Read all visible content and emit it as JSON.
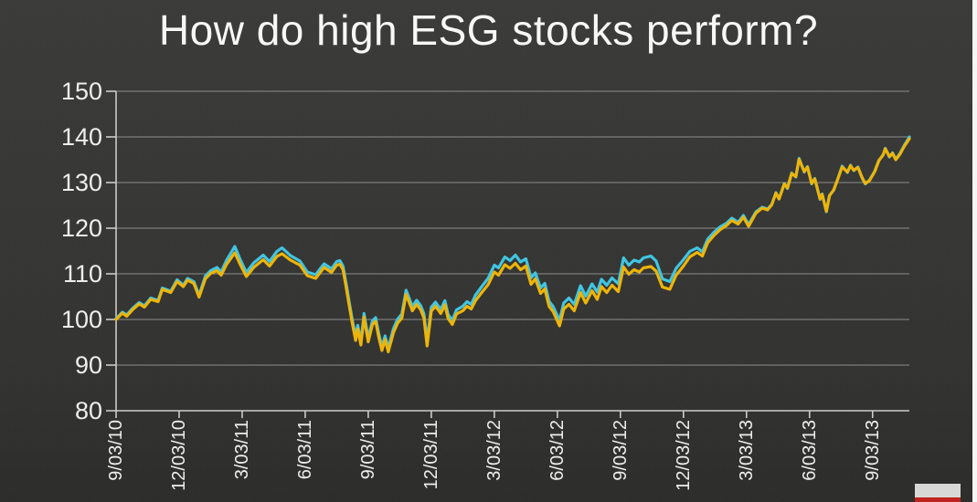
{
  "title": "How do high ESG stocks perform?",
  "colors": {
    "background_top": "#3a3a38",
    "background_bottom": "#2b2b29",
    "grid": "#8e8e8c",
    "axis": "#cfcfcd",
    "text": "#f3f3f1",
    "series_cyan": "#3fc8e6",
    "series_yellow": "#f2b705",
    "watermark_body": "#d8d8d6",
    "watermark_stripe": "#c0231d",
    "edge_strip": "#f4f6f6"
  },
  "watermark": {
    "present": true
  },
  "chart_data": {
    "type": "line",
    "title": "How do high ESG stocks perform?",
    "xlabel": "",
    "ylabel": "",
    "grid": true,
    "legend": "none",
    "x_unit": "months after 9/03/10",
    "xlim": [
      0,
      37.75
    ],
    "ylim": [
      80,
      150
    ],
    "y_ticks": [
      150,
      140,
      130,
      120,
      110,
      100,
      90,
      80
    ],
    "x_tick_positions": [
      0,
      3,
      6,
      9,
      12,
      15,
      18,
      21,
      24,
      27,
      30,
      33,
      36
    ],
    "x_tick_labels": [
      "9/03/10",
      "12/03/10",
      "3/03/11",
      "6/03/11",
      "9/03/11",
      "12/03/11",
      "3/03/12",
      "6/03/12",
      "9/03/12",
      "12/03/12",
      "3/03/13",
      "6/03/13",
      "9/03/13"
    ],
    "x": [
      0.0,
      0.3,
      0.5,
      0.8,
      1.1,
      1.35,
      1.65,
      2.0,
      2.2,
      2.6,
      2.9,
      3.2,
      3.4,
      3.7,
      3.95,
      4.25,
      4.5,
      4.8,
      5.0,
      5.25,
      5.65,
      5.9,
      6.2,
      6.55,
      7.0,
      7.3,
      7.65,
      7.9,
      8.3,
      8.75,
      9.1,
      9.5,
      9.9,
      10.25,
      10.5,
      10.65,
      10.8,
      10.95,
      11.1,
      11.25,
      11.4,
      11.5,
      11.65,
      11.8,
      12.0,
      12.2,
      12.35,
      12.5,
      12.65,
      12.8,
      12.95,
      13.2,
      13.4,
      13.6,
      13.8,
      13.95,
      14.1,
      14.3,
      14.5,
      14.65,
      14.8,
      15.0,
      15.2,
      15.45,
      15.65,
      15.8,
      16.0,
      16.2,
      16.5,
      16.7,
      16.9,
      17.1,
      17.4,
      17.7,
      18.0,
      18.2,
      18.5,
      18.75,
      19.0,
      19.25,
      19.5,
      19.75,
      19.95,
      20.2,
      20.4,
      20.6,
      20.8,
      21.1,
      21.3,
      21.55,
      21.8,
      22.1,
      22.35,
      22.65,
      22.9,
      23.1,
      23.35,
      23.6,
      23.9,
      24.15,
      24.4,
      24.65,
      24.9,
      25.1,
      25.45,
      25.7,
      26.0,
      26.35,
      26.65,
      27.0,
      27.3,
      27.65,
      27.9,
      28.15,
      28.45,
      28.75,
      29.05,
      29.3,
      29.6,
      29.85,
      30.1,
      30.45,
      30.75,
      31.0,
      31.2,
      31.4,
      31.55,
      31.8,
      31.95,
      32.15,
      32.35,
      32.5,
      32.75,
      32.9,
      33.1,
      33.25,
      33.5,
      33.6,
      33.8,
      33.95,
      34.15,
      34.35,
      34.55,
      34.8,
      34.95,
      35.1,
      35.3,
      35.5,
      35.65,
      35.85,
      36.1,
      36.3,
      36.5,
      36.6,
      36.8,
      36.95,
      37.1,
      37.3,
      37.5,
      37.65,
      37.75
    ],
    "series": [
      {
        "name": "cyan-line",
        "color_key": "series_cyan",
        "values": [
          100.2,
          101.6,
          101.0,
          102.5,
          103.7,
          103.0,
          104.7,
          104.2,
          106.9,
          106.2,
          108.7,
          107.5,
          109.0,
          108.3,
          105.3,
          109.5,
          110.7,
          111.4,
          110.4,
          112.9,
          116.0,
          113.2,
          110.3,
          112.4,
          114.1,
          112.7,
          114.9,
          115.7,
          114.0,
          112.8,
          110.4,
          109.8,
          112.2,
          111.1,
          112.7,
          112.9,
          111.7,
          107.8,
          103.7,
          99.7,
          96.2,
          98.7,
          95.2,
          101.3,
          95.9,
          99.7,
          100.4,
          96.9,
          94.0,
          96.4,
          93.8,
          98.0,
          100.1,
          101.2,
          106.4,
          104.6,
          102.8,
          104.2,
          103.0,
          101.2,
          95.3,
          102.7,
          103.8,
          102.2,
          104.1,
          101.1,
          99.8,
          102.1,
          102.9,
          103.9,
          103.3,
          105.3,
          107.2,
          109.0,
          111.9,
          111.3,
          113.7,
          112.9,
          114.1,
          112.6,
          113.3,
          109.1,
          110.2,
          106.9,
          107.9,
          104.0,
          102.8,
          99.8,
          103.6,
          104.7,
          103.3,
          107.4,
          105.1,
          107.8,
          106.0,
          108.8,
          107.5,
          109.1,
          107.8,
          113.5,
          111.9,
          113.0,
          112.6,
          113.5,
          113.9,
          112.8,
          108.9,
          108.3,
          111.2,
          113.1,
          114.9,
          115.7,
          114.8,
          117.6,
          119.1,
          120.3,
          121.1,
          122.2,
          121.3,
          122.8,
          120.8,
          123.6,
          124.6,
          124.2,
          125.2,
          127.8,
          126.4,
          129.8,
          128.7,
          132.1,
          131.2,
          135.3,
          132.3,
          133.5,
          129.7,
          130.9,
          126.3,
          127.5,
          123.6,
          127.2,
          128.3,
          130.9,
          133.6,
          132.2,
          133.8,
          132.6,
          133.4,
          131.0,
          129.7,
          130.5,
          132.5,
          134.9,
          136.0,
          137.5,
          135.6,
          136.5,
          135.1,
          136.4,
          138.1,
          139.2,
          140.0
        ]
      },
      {
        "name": "yellow-line",
        "color_key": "series_yellow",
        "values": [
          100.0,
          101.4,
          100.7,
          102.2,
          103.4,
          102.7,
          104.4,
          103.9,
          106.6,
          105.9,
          108.3,
          107.2,
          108.6,
          107.9,
          104.9,
          108.9,
          110.1,
          110.7,
          109.7,
          112.0,
          114.6,
          112.1,
          109.4,
          111.4,
          113.1,
          111.7,
          113.8,
          114.4,
          113.0,
          111.9,
          109.6,
          109.0,
          111.4,
          110.3,
          111.9,
          112.1,
          110.9,
          107.0,
          102.9,
          98.9,
          95.4,
          97.9,
          94.4,
          100.5,
          95.1,
          98.9,
          99.6,
          96.1,
          93.2,
          95.6,
          92.9,
          97.1,
          99.2,
          100.3,
          105.5,
          103.7,
          101.9,
          103.3,
          102.1,
          100.3,
          94.2,
          101.8,
          102.9,
          101.3,
          103.2,
          100.2,
          98.9,
          101.2,
          101.9,
          102.9,
          102.3,
          104.1,
          105.9,
          107.6,
          110.4,
          109.7,
          112.0,
          111.2,
          112.3,
          110.9,
          111.7,
          107.7,
          108.9,
          105.7,
          106.7,
          102.9,
          101.7,
          98.6,
          102.3,
          103.3,
          101.9,
          105.9,
          103.6,
          106.3,
          104.4,
          107.2,
          105.9,
          107.5,
          106.1,
          111.5,
          109.9,
          110.9,
          110.4,
          111.3,
          111.6,
          110.6,
          107.1,
          106.6,
          109.7,
          111.7,
          113.7,
          114.7,
          113.9,
          116.8,
          118.4,
          119.7,
          120.6,
          121.7,
          120.9,
          122.4,
          120.4,
          123.3,
          124.4,
          124.0,
          125.1,
          127.7,
          126.4,
          129.7,
          128.8,
          132.0,
          131.3,
          135.1,
          132.4,
          133.4,
          129.8,
          130.8,
          126.4,
          127.4,
          123.7,
          127.1,
          128.4,
          130.8,
          133.4,
          132.3,
          133.7,
          132.7,
          133.3,
          131.1,
          129.8,
          130.4,
          132.4,
          134.8,
          136.1,
          137.4,
          135.7,
          136.4,
          135.0,
          136.2,
          137.9,
          138.9,
          139.6
        ]
      }
    ]
  }
}
